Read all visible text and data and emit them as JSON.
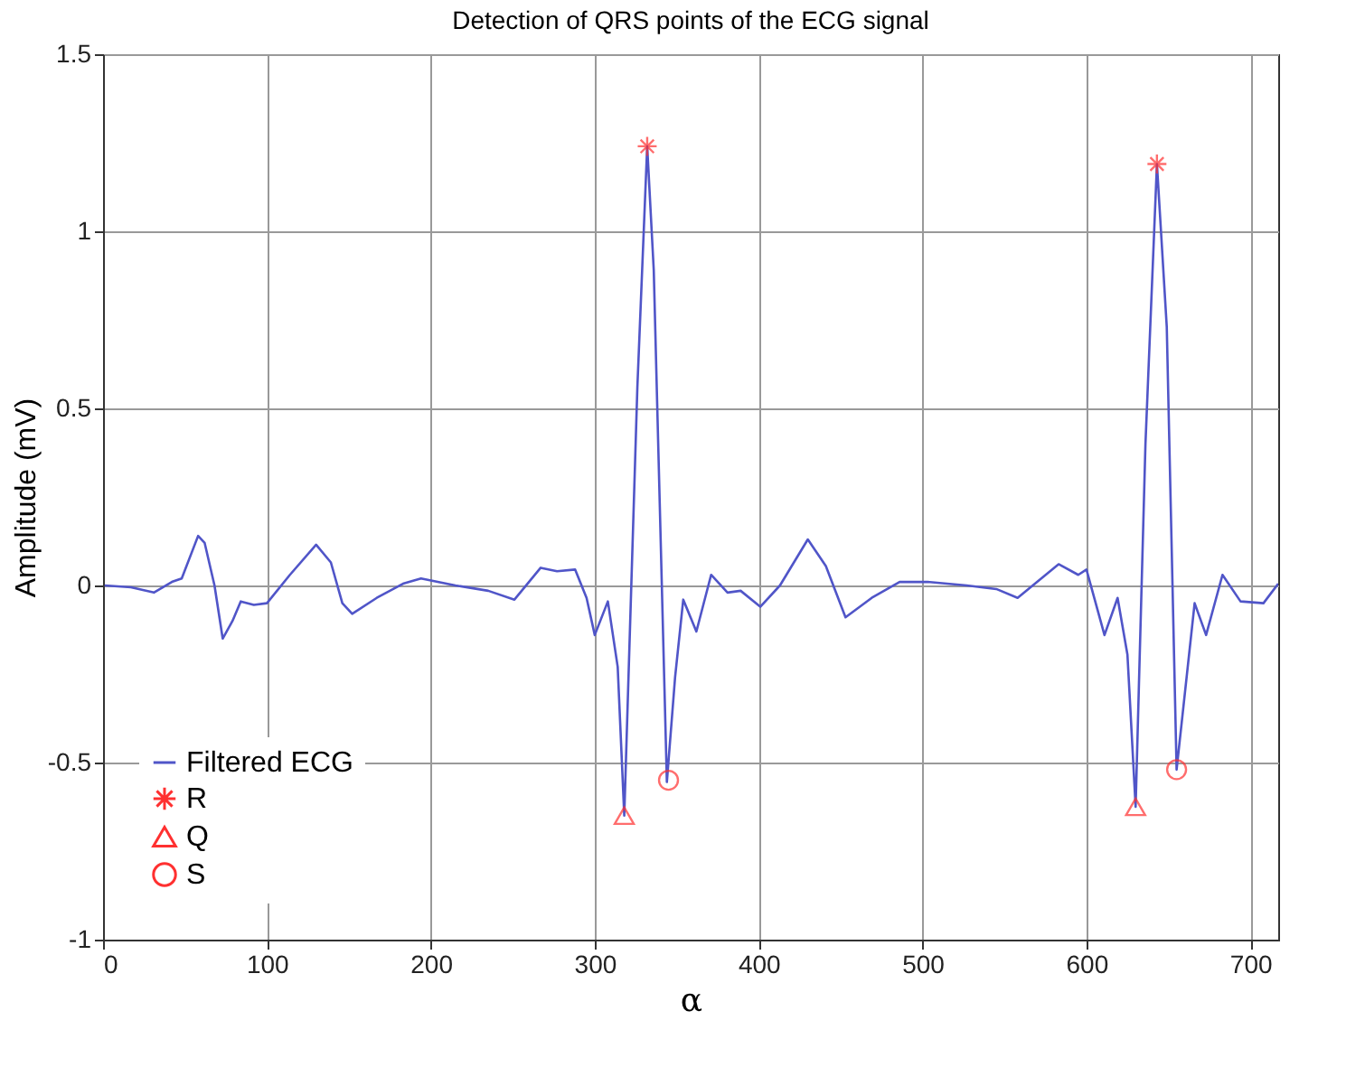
{
  "chart_data": {
    "type": "line",
    "title": "Detection of QRS points of the ECG signal",
    "xlabel": "α",
    "ylabel": "Amplitude (mV)",
    "xlim": [
      0,
      717
    ],
    "ylim": [
      -1,
      1.5
    ],
    "xticks": [
      0,
      100,
      200,
      300,
      400,
      500,
      600,
      700
    ],
    "yticks": [
      -1,
      -0.5,
      0,
      0.5,
      1,
      1.5
    ],
    "grid": true,
    "legend": "bottom left",
    "series": [
      {
        "name": "Filtered ECG",
        "color": "#5055c8",
        "marker": "none",
        "x": [
          1,
          17,
          31,
          42,
          48,
          58,
          62,
          68,
          73,
          79,
          84,
          92,
          100,
          114,
          130,
          139,
          146,
          152,
          167,
          183,
          194,
          215,
          235,
          251,
          267,
          277,
          288,
          295,
          300,
          308,
          314,
          318,
          326,
          332,
          336,
          344,
          349,
          354,
          362,
          371,
          381,
          389,
          401,
          413,
          430,
          441,
          453,
          469,
          486,
          503,
          527,
          545,
          558,
          583,
          595,
          600,
          611,
          619,
          625,
          630,
          636,
          643,
          649,
          655,
          666,
          673,
          683,
          694,
          708,
          717
        ],
        "values": [
          0,
          -0.005,
          -0.02,
          0.01,
          0.02,
          0.14,
          0.12,
          0,
          -0.15,
          -0.1,
          -0.045,
          -0.055,
          -0.05,
          0.03,
          0.115,
          0.065,
          -0.05,
          -0.08,
          -0.035,
          0.005,
          0.02,
          0,
          -0.015,
          -0.04,
          0.05,
          0.04,
          0.045,
          -0.035,
          -0.14,
          -0.045,
          -0.23,
          -0.65,
          0.56,
          1.24,
          0.89,
          -0.555,
          -0.26,
          -0.04,
          -0.13,
          0.03,
          -0.02,
          -0.015,
          -0.06,
          0,
          0.13,
          0.055,
          -0.09,
          -0.035,
          0.01,
          0.01,
          0,
          -0.01,
          -0.035,
          0.06,
          0.03,
          0.045,
          -0.14,
          -0.035,
          -0.195,
          -0.625,
          0.4,
          1.19,
          0.73,
          -0.52,
          -0.05,
          -0.14,
          0.03,
          -0.045,
          -0.05,
          0.005
        ]
      },
      {
        "name": "R",
        "type": "scatter",
        "color": "#ff3030",
        "marker": "cross",
        "x": [
          332,
          643
        ],
        "values": [
          1.24,
          1.19
        ]
      },
      {
        "name": "Q",
        "type": "scatter",
        "color": "#ff3030",
        "marker": "triangle",
        "x": [
          318,
          630
        ],
        "values": [
          -0.65,
          -0.625
        ]
      },
      {
        "name": "S",
        "type": "scatter",
        "color": "#ff3030",
        "marker": "circle",
        "x": [
          345,
          655
        ],
        "values": [
          -0.55,
          -0.52
        ]
      }
    ]
  }
}
